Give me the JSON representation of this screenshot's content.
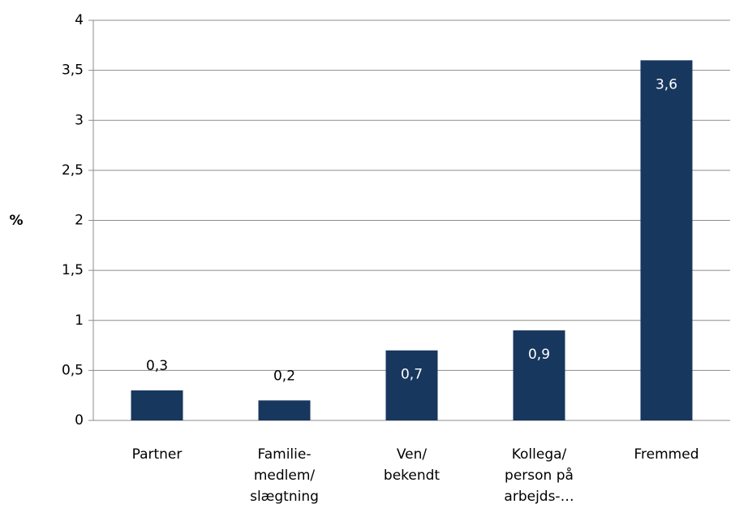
{
  "chart_data": {
    "type": "bar",
    "y_label": "%",
    "categories": [
      "Partner",
      "Familie-\nmedlem/\nslægtning",
      "Ven/\nbekendt",
      "Kollega/\nperson på\narbejds-…",
      "Fremmed"
    ],
    "values": [
      0.3,
      0.2,
      0.7,
      0.9,
      3.6
    ],
    "value_labels": [
      "0,3",
      "0,2",
      "0,7",
      "0,9",
      "3,6"
    ],
    "color": "#17375e",
    "ylim": [
      0,
      4
    ],
    "yticks": [
      0,
      {
        "value": 0.5,
        "label": "0,5"
      },
      1,
      {
        "value": 1.5,
        "label": "1,5"
      },
      2,
      {
        "value": 2.5,
        "label": "2,5"
      },
      3,
      {
        "value": 3.5,
        "label": "3,5"
      },
      4
    ],
    "grid": true
  }
}
